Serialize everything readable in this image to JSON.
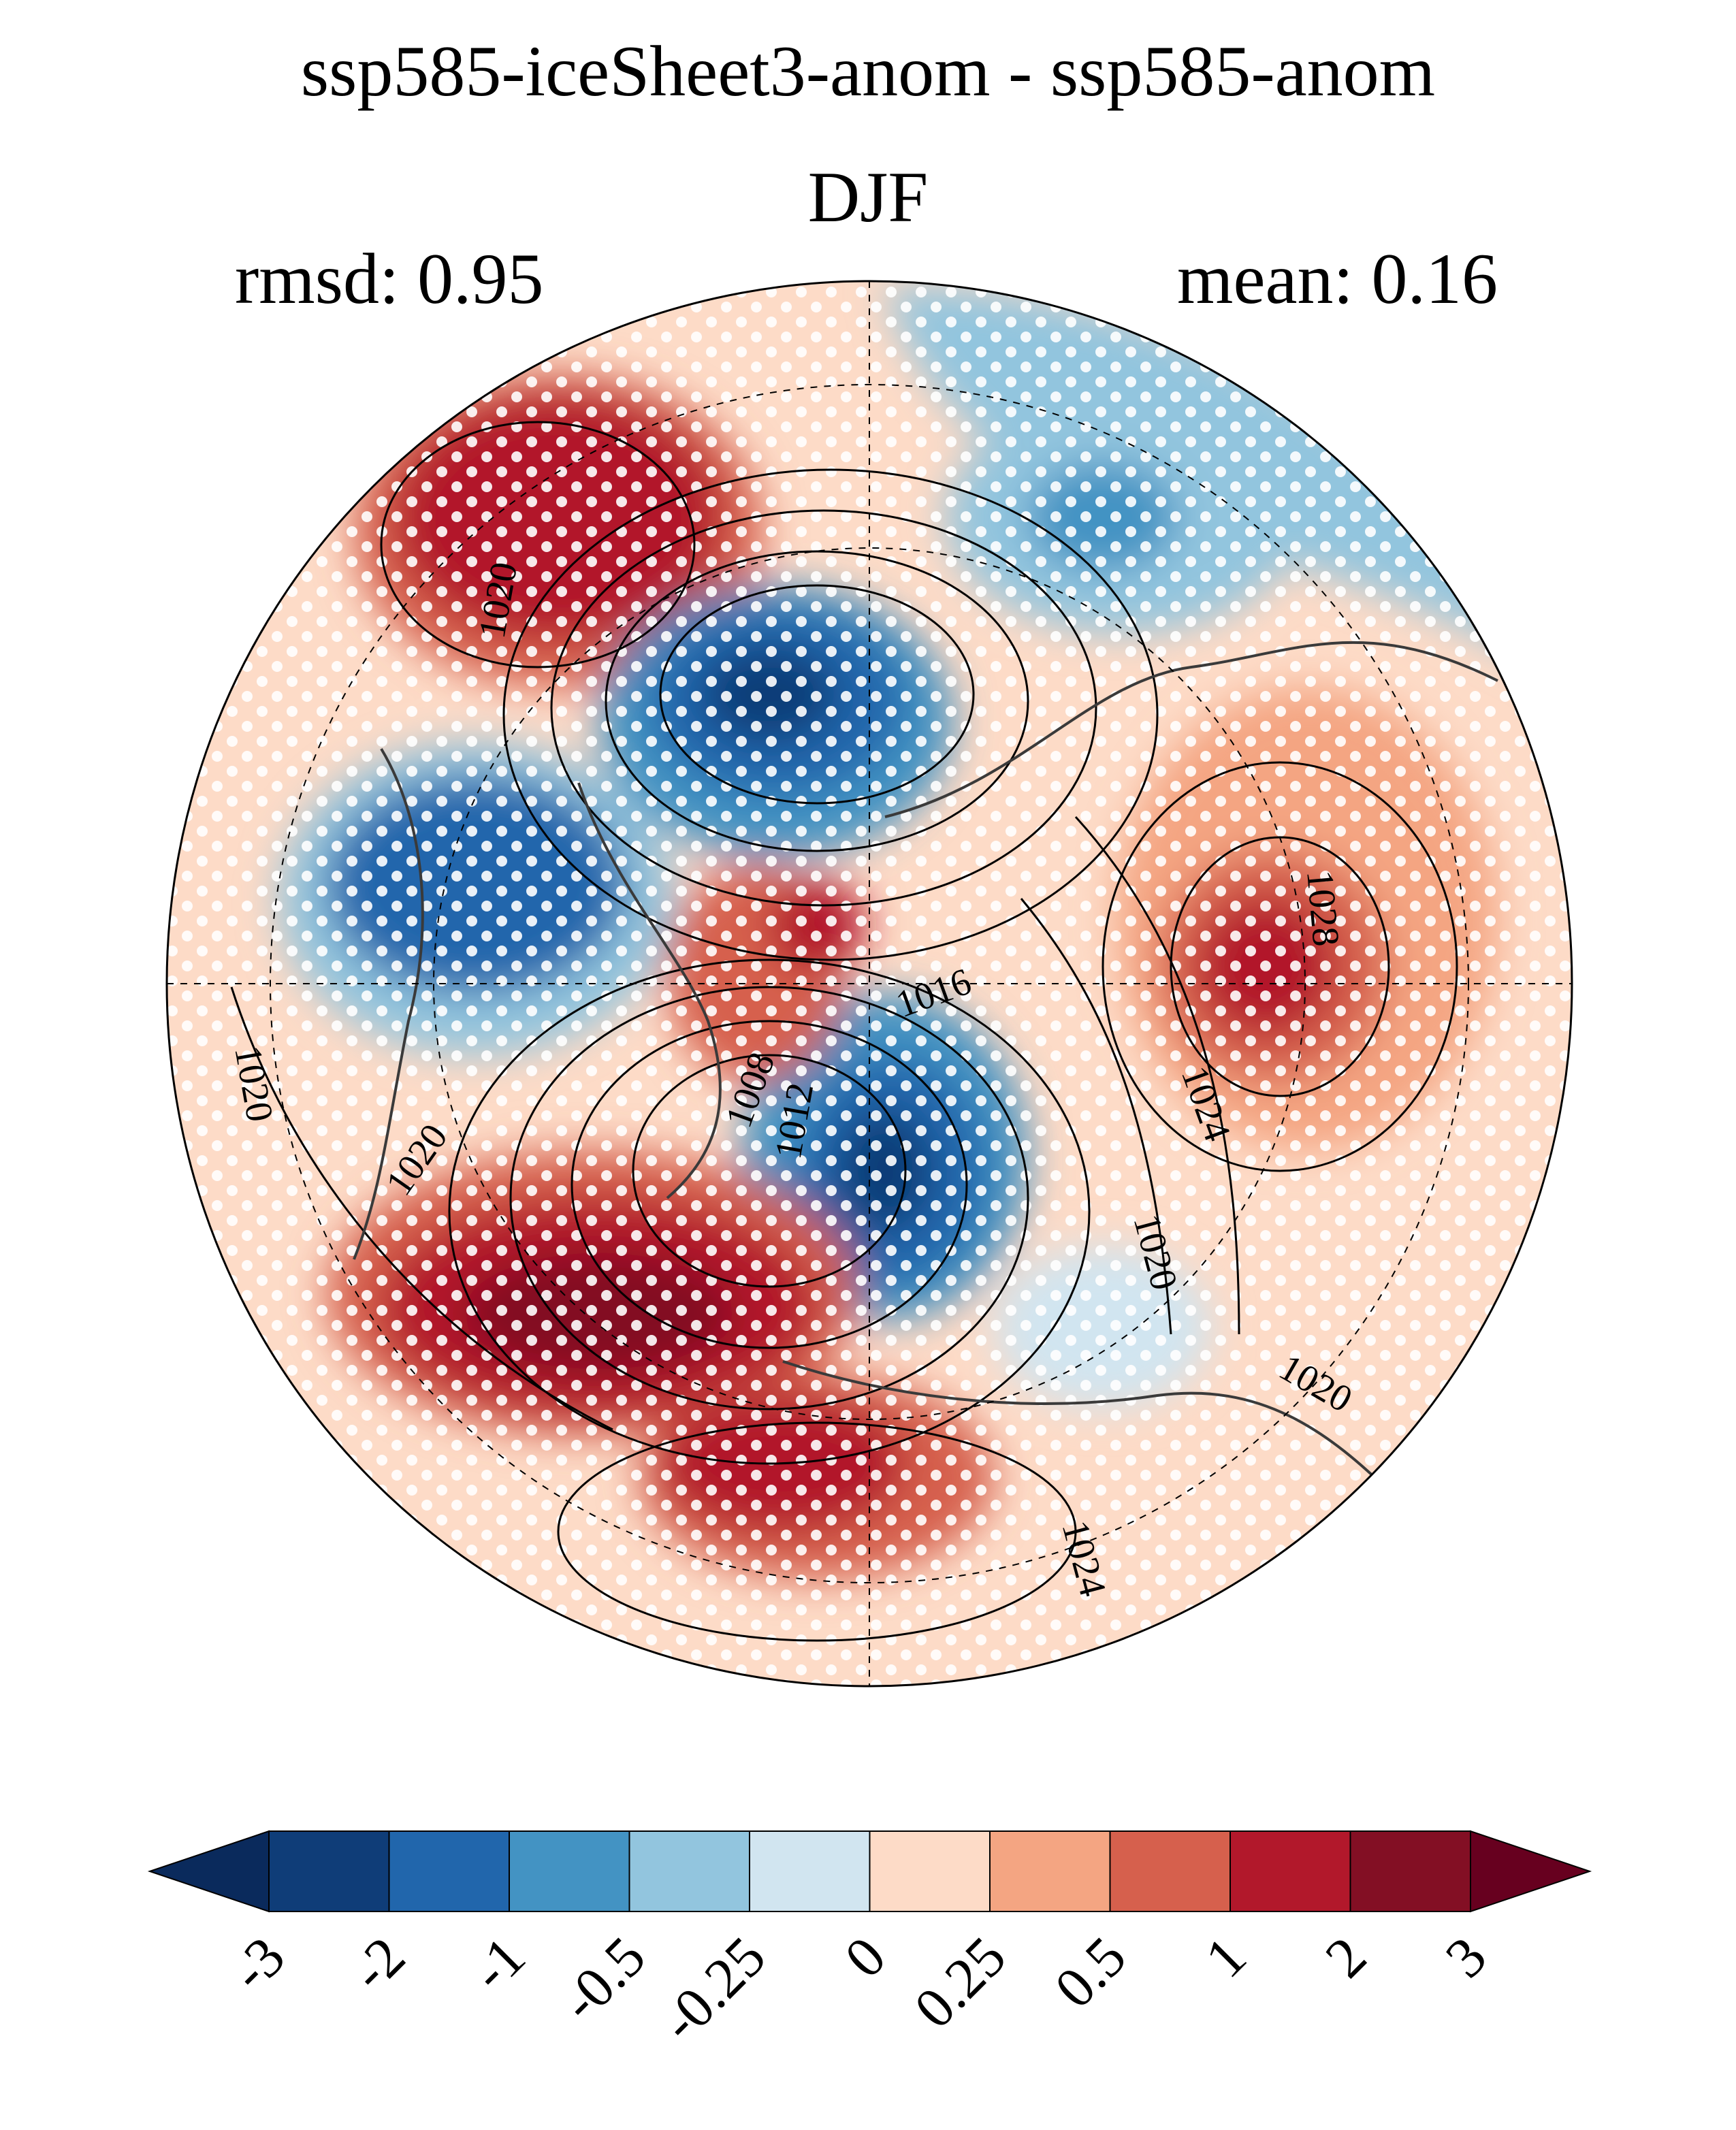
{
  "header": {
    "title": "ssp585-iceSheet3-anom - ssp585-anom",
    "season": "DJF",
    "rmsd_label": "rmsd: 0.95",
    "mean_label": "mean: 0.16"
  },
  "map": {
    "projection": "north-polar-stereographic",
    "contour_labels": [
      "1020",
      "1020",
      "1020",
      "1016",
      "1008",
      "1012",
      "1028",
      "1024",
      "1020",
      "1020",
      "1024"
    ],
    "stippling": "white dots (significance)"
  },
  "colorbar": {
    "colors": [
      "#0a2a5c",
      "#0f3d78",
      "#2166ac",
      "#4393c3",
      "#92c5de",
      "#d1e5f0",
      "#fddbc7",
      "#f4a582",
      "#d6604d",
      "#b2182b",
      "#830f24",
      "#67001f"
    ],
    "tick_labels": [
      "-3",
      "-2",
      "-1",
      "-0.5",
      "-0.25",
      "0",
      "0.25",
      "0.5",
      "1",
      "2",
      "3"
    ]
  }
}
